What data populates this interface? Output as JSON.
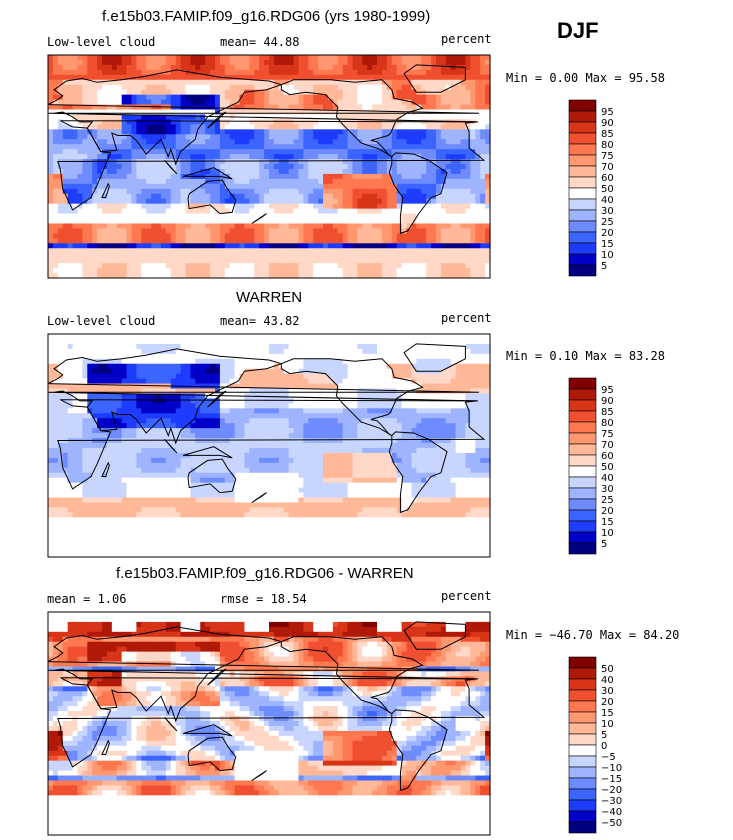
{
  "season": "DJF",
  "colors": {
    "abs": [
      "#000080",
      "#0000c8",
      "#1e3cff",
      "#3c64ff",
      "#6e8cff",
      "#9eb4ff",
      "#c8d6ff",
      "#ffffff",
      "#ffd8c8",
      "#ffb898",
      "#ff9870",
      "#ff7850",
      "#f05030",
      "#d83418",
      "#b01808",
      "#800000"
    ],
    "diff": [
      "#000080",
      "#0000c8",
      "#1e3cff",
      "#3c64ff",
      "#6e8cff",
      "#9eb4ff",
      "#c8d6ff",
      "#ffffff",
      "#ffd8c8",
      "#ffb898",
      "#ff9870",
      "#ff7850",
      "#f05030",
      "#d83418",
      "#b01808",
      "#800000"
    ],
    "coast": "#000000",
    "missing": "#ffffff"
  },
  "chart_data": [
    {
      "type": "heatmap",
      "title": "f.e15b03.FAMIP.f09_g16.RDG06 (yrs 1980-1999)",
      "left_label": "Low-level cloud",
      "center_label": "mean=  44.88",
      "units": "percent",
      "stats": "Min =   0.00 Max =  95.58",
      "min": 0.0,
      "max": 95.58,
      "mean": 44.88,
      "levels": [
        "95",
        "90",
        "85",
        "80",
        "75",
        "70",
        "60",
        "50",
        "40",
        "30",
        "25",
        "20",
        "15",
        "10",
        "5"
      ],
      "field": "model"
    },
    {
      "type": "heatmap",
      "title": "WARREN",
      "left_label": "Low-level cloud",
      "center_label": "mean=  43.82",
      "units": "percent",
      "stats": "Min =   0.10 Max =  83.28",
      "min": 0.1,
      "max": 83.28,
      "mean": 43.82,
      "levels": [
        "95",
        "90",
        "85",
        "80",
        "75",
        "70",
        "60",
        "50",
        "40",
        "30",
        "25",
        "20",
        "15",
        "10",
        "5"
      ],
      "field": "obs"
    },
    {
      "type": "heatmap",
      "title": "f.e15b03.FAMIP.f09_g16.RDG06 - WARREN",
      "left_label": "mean =   1.06",
      "center_label": "rmse =  18.54",
      "units": "percent",
      "stats": "Min = −46.70 Max =  84.20",
      "min": -46.7,
      "max": 84.2,
      "mean": 1.06,
      "rmse": 18.54,
      "levels": [
        "50",
        "40",
        "30",
        "20",
        "15",
        "10",
        "5",
        "0",
        "−5",
        "−10",
        "−15",
        "−20",
        "−30",
        "−40",
        "−50"
      ],
      "field": "diff"
    }
  ]
}
